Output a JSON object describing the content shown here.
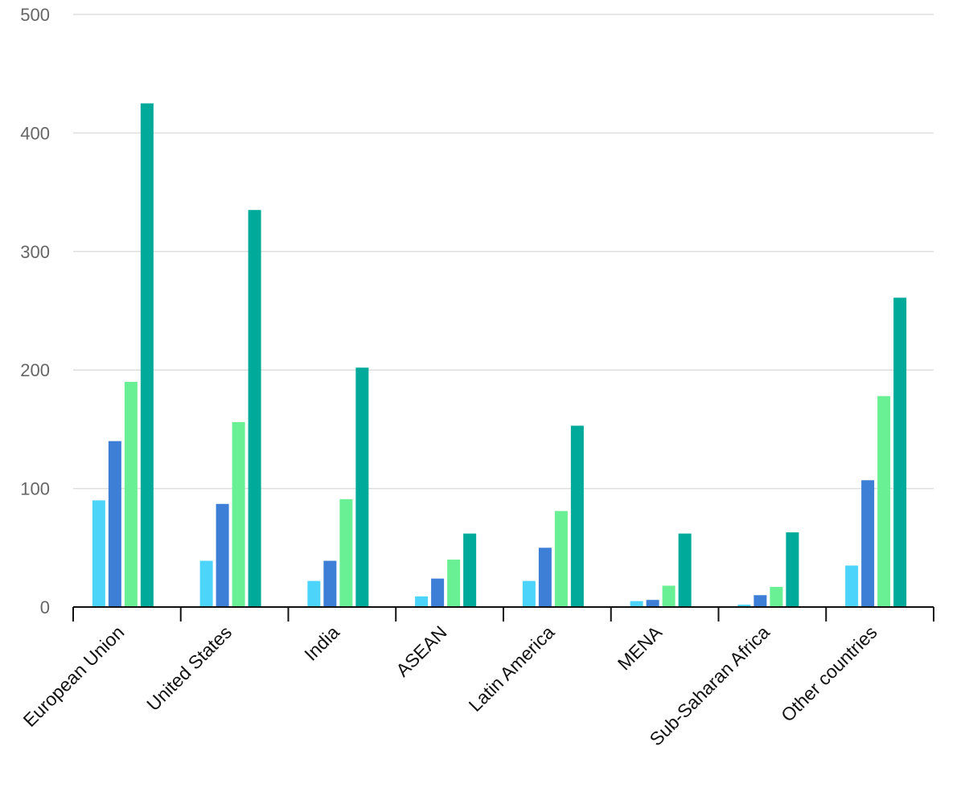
{
  "chart_data": {
    "type": "bar",
    "categories": [
      "European Union",
      "United States",
      "India",
      "ASEAN",
      "Latin America",
      "MENA",
      "Sub-Saharan Africa",
      "Other countries"
    ],
    "series": [
      {
        "color": "#4dd4fa",
        "values": [
          90,
          39,
          22,
          9,
          22,
          5,
          2,
          35
        ]
      },
      {
        "color": "#3d7fd6",
        "values": [
          140,
          87,
          39,
          24,
          50,
          6,
          10,
          107
        ]
      },
      {
        "color": "#69f094",
        "values": [
          190,
          156,
          91,
          40,
          81,
          18,
          17,
          178
        ]
      },
      {
        "color": "#00aa9b",
        "values": [
          425,
          335,
          202,
          62,
          153,
          62,
          63,
          261
        ]
      }
    ],
    "y_ticks": [
      "0",
      "100",
      "200",
      "300",
      "400",
      "500"
    ],
    "ylim": [
      0,
      500
    ],
    "grid": true,
    "legend": "none"
  }
}
